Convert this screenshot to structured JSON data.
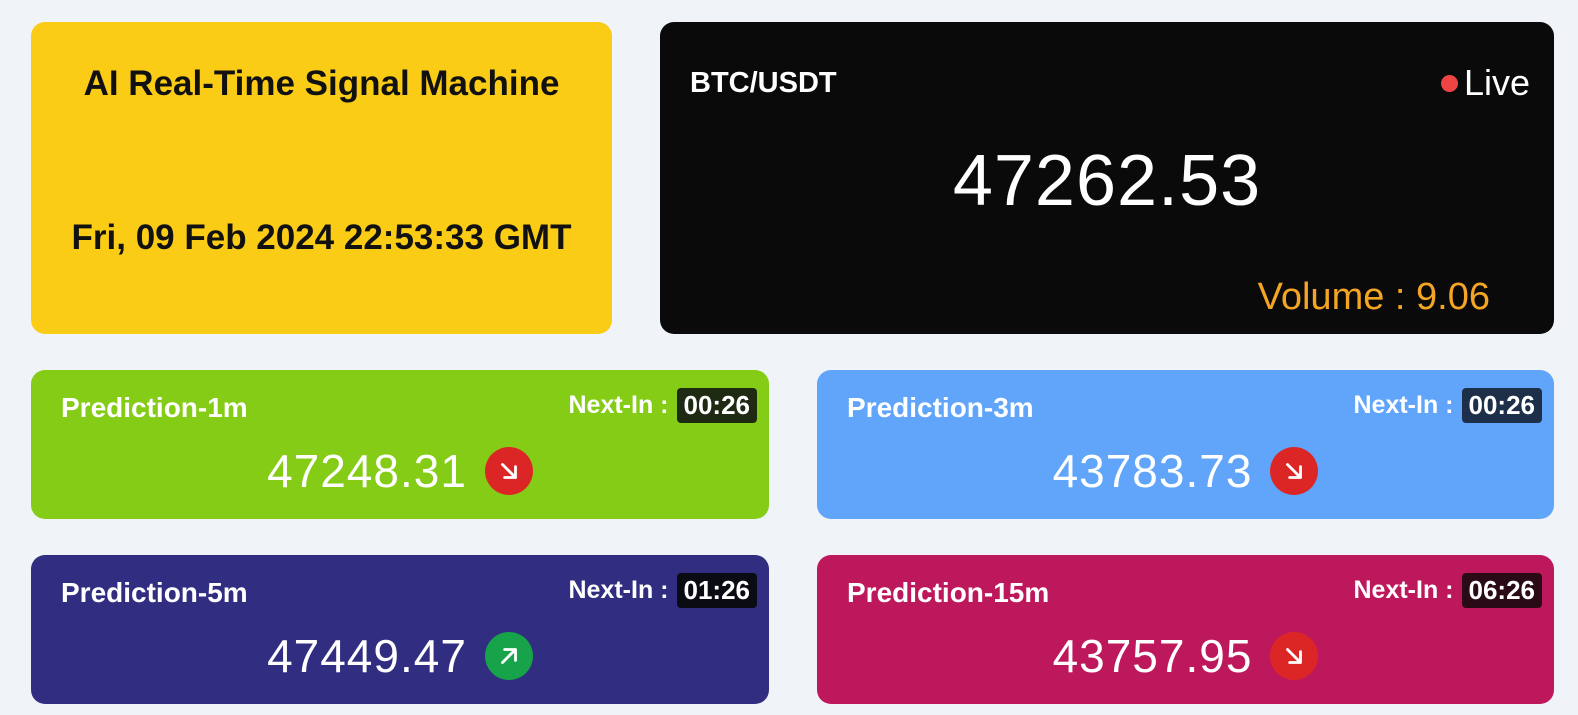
{
  "header": {
    "app_title": "AI Real-Time Signal Machine",
    "clock": "Fri, 09 Feb 2024 22:53:33 GMT"
  },
  "ticker": {
    "pair": "BTC/USDT",
    "live_label": "Live",
    "price": "47262.53",
    "volume_label": "Volume : 9.06"
  },
  "predictions": [
    {
      "title": "Prediction-1m",
      "next_label": "Next-In :",
      "timer": "00:26",
      "value": "47248.31",
      "direction": "down",
      "icon": "arrow-down-right-icon"
    },
    {
      "title": "Prediction-3m",
      "next_label": "Next-In :",
      "timer": "00:26",
      "value": "43783.73",
      "direction": "down",
      "icon": "arrow-down-right-icon"
    },
    {
      "title": "Prediction-5m",
      "next_label": "Next-In :",
      "timer": "01:26",
      "value": "47449.47",
      "direction": "up",
      "icon": "arrow-up-right-icon"
    },
    {
      "title": "Prediction-15m",
      "next_label": "Next-In :",
      "timer": "06:26",
      "value": "43757.95",
      "direction": "down",
      "icon": "arrow-down-right-icon"
    }
  ],
  "colors": {
    "title_card": "#facc15",
    "price_card": "#0a0a0b",
    "volume_text": "#f5a524",
    "live_dot": "#ef4444",
    "pred_1m": "#84cc16",
    "pred_3m": "#60a5fa",
    "pred_5m": "#312e81",
    "pred_15m": "#be185d",
    "arrow_down": "#dc2626",
    "arrow_up": "#16a34a"
  }
}
